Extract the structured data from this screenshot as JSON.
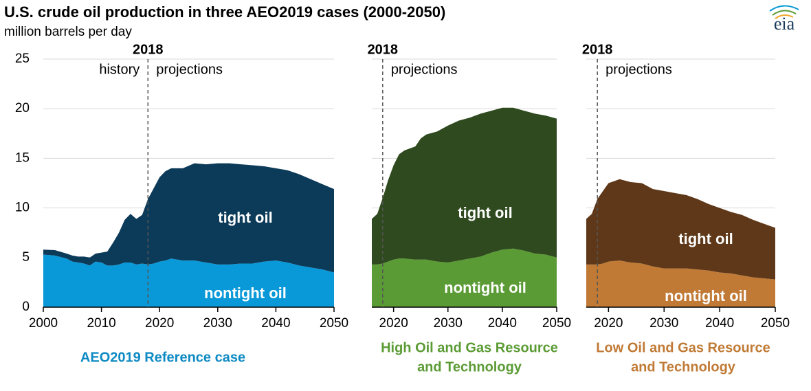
{
  "title": "U.S. crude oil production in three AEO2019 cases (2000-2050)",
  "subtitle": "million barrels per day",
  "logo": "eia",
  "chart_data": [
    {
      "type": "area",
      "stacked": true,
      "caption": [
        "AEO2019 Reference case"
      ],
      "caption_color": "#0d8ac3",
      "x": [
        2000,
        2002,
        2004,
        2005,
        2006,
        2007,
        2008,
        2009,
        2010,
        2011,
        2012,
        2013,
        2014,
        2015,
        2016,
        2017,
        2018,
        2019,
        2020,
        2021,
        2022,
        2024,
        2026,
        2028,
        2030,
        2032,
        2034,
        2036,
        2038,
        2040,
        2042,
        2044,
        2046,
        2048,
        2050
      ],
      "series": [
        {
          "name": "nontight oil",
          "color": "#0a99d8",
          "values": [
            5.3,
            5.2,
            4.9,
            4.6,
            4.5,
            4.4,
            4.2,
            4.6,
            4.5,
            4.2,
            4.2,
            4.3,
            4.5,
            4.5,
            4.3,
            4.4,
            4.3,
            4.4,
            4.6,
            4.7,
            4.9,
            4.7,
            4.7,
            4.5,
            4.3,
            4.3,
            4.4,
            4.4,
            4.6,
            4.7,
            4.5,
            4.2,
            4.0,
            3.8,
            3.5
          ]
        },
        {
          "name": "tight oil",
          "color": "#0c3a59",
          "values": [
            0.5,
            0.55,
            0.5,
            0.6,
            0.6,
            0.7,
            0.8,
            0.8,
            1.0,
            1.4,
            2.3,
            3.2,
            4.3,
            4.9,
            4.6,
            4.9,
            6.6,
            7.6,
            8.5,
            9.0,
            9.1,
            9.3,
            9.8,
            9.9,
            10.2,
            10.2,
            10.0,
            9.9,
            9.6,
            9.3,
            9.3,
            9.2,
            8.9,
            8.6,
            8.4
          ]
        }
      ],
      "xlim": [
        2000,
        2050
      ],
      "xticks": [
        2000,
        2010,
        2020,
        2030,
        2040,
        2050
      ],
      "ylim": [
        0,
        25
      ],
      "yticks": [
        0,
        5,
        10,
        15,
        20,
        25
      ],
      "ytick_labels": true,
      "grid": true,
      "vline": 2018,
      "annotations": [
        "history",
        "projections"
      ]
    },
    {
      "type": "area",
      "stacked": true,
      "caption": [
        "High Oil and Gas Resource",
        "and Technology"
      ],
      "caption_color": "#5b9b35",
      "x": [
        2016,
        2017,
        2018,
        2019,
        2020,
        2021,
        2022,
        2024,
        2025,
        2026,
        2028,
        2030,
        2032,
        2034,
        2036,
        2038,
        2040,
        2042,
        2044,
        2046,
        2048,
        2050
      ],
      "series": [
        {
          "name": "nontight oil",
          "color": "#5b9b35",
          "values": [
            4.3,
            4.3,
            4.4,
            4.6,
            4.8,
            4.9,
            4.9,
            4.8,
            4.8,
            4.8,
            4.6,
            4.5,
            4.7,
            4.9,
            5.1,
            5.5,
            5.8,
            5.9,
            5.7,
            5.4,
            5.3,
            5.0
          ]
        },
        {
          "name": "tight oil",
          "color": "#2e4a1e",
          "values": [
            4.6,
            5.1,
            6.6,
            8.2,
            9.5,
            10.5,
            10.9,
            11.4,
            12.2,
            12.6,
            13.1,
            13.8,
            14.1,
            14.2,
            14.4,
            14.3,
            14.3,
            14.2,
            14.1,
            14.1,
            14.0,
            14.0
          ]
        }
      ],
      "xlim": [
        2016,
        2050
      ],
      "xticks": [
        2020,
        2030,
        2040,
        2050
      ],
      "ylim": [
        0,
        25
      ],
      "yticks": [
        0,
        5,
        10,
        15,
        20,
        25
      ],
      "ytick_labels": false,
      "grid": true,
      "vline": 2018,
      "annotations": [
        "projections"
      ]
    },
    {
      "type": "area",
      "stacked": true,
      "caption": [
        "Low Oil and Gas Resource",
        "and Technology"
      ],
      "caption_color": "#c07a35",
      "x": [
        2016,
        2017,
        2018,
        2019,
        2020,
        2022,
        2024,
        2026,
        2028,
        2030,
        2032,
        2034,
        2036,
        2038,
        2040,
        2042,
        2044,
        2046,
        2048,
        2050
      ],
      "series": [
        {
          "name": "nontight oil",
          "color": "#c07a35",
          "values": [
            4.3,
            4.3,
            4.3,
            4.4,
            4.6,
            4.7,
            4.5,
            4.4,
            4.1,
            3.9,
            3.9,
            3.9,
            3.8,
            3.7,
            3.5,
            3.4,
            3.2,
            3.0,
            2.9,
            2.8
          ]
        },
        {
          "name": "tight oil",
          "color": "#5e3818",
          "values": [
            4.6,
            5.1,
            6.6,
            7.3,
            7.9,
            8.2,
            8.1,
            8.1,
            7.8,
            7.8,
            7.6,
            7.4,
            7.1,
            6.7,
            6.5,
            6.2,
            6.1,
            5.8,
            5.5,
            5.2
          ]
        }
      ],
      "xlim": [
        2016,
        2050
      ],
      "xticks": [
        2020,
        2030,
        2040,
        2050
      ],
      "ylim": [
        0,
        25
      ],
      "yticks": [
        0,
        5,
        10,
        15,
        20,
        25
      ],
      "ytick_labels": false,
      "grid": true,
      "vline": 2018,
      "annotations": [
        "projections"
      ]
    }
  ]
}
